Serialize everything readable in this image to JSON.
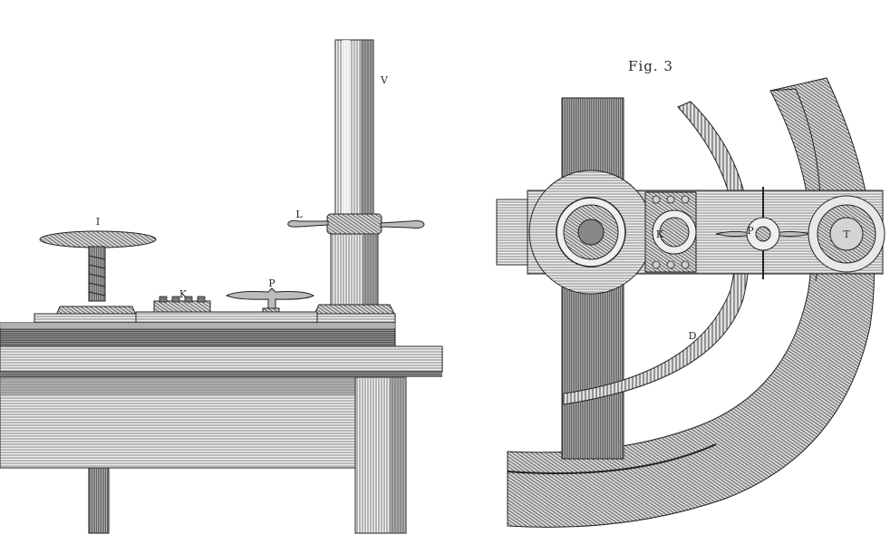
{
  "figure": {
    "title": "Fig. 3"
  },
  "labels": {
    "I": "I",
    "K": "K",
    "P": "P",
    "L": "L",
    "V": "V",
    "K_plan": "K",
    "P_plan": "P",
    "T": "T",
    "D": "D"
  }
}
